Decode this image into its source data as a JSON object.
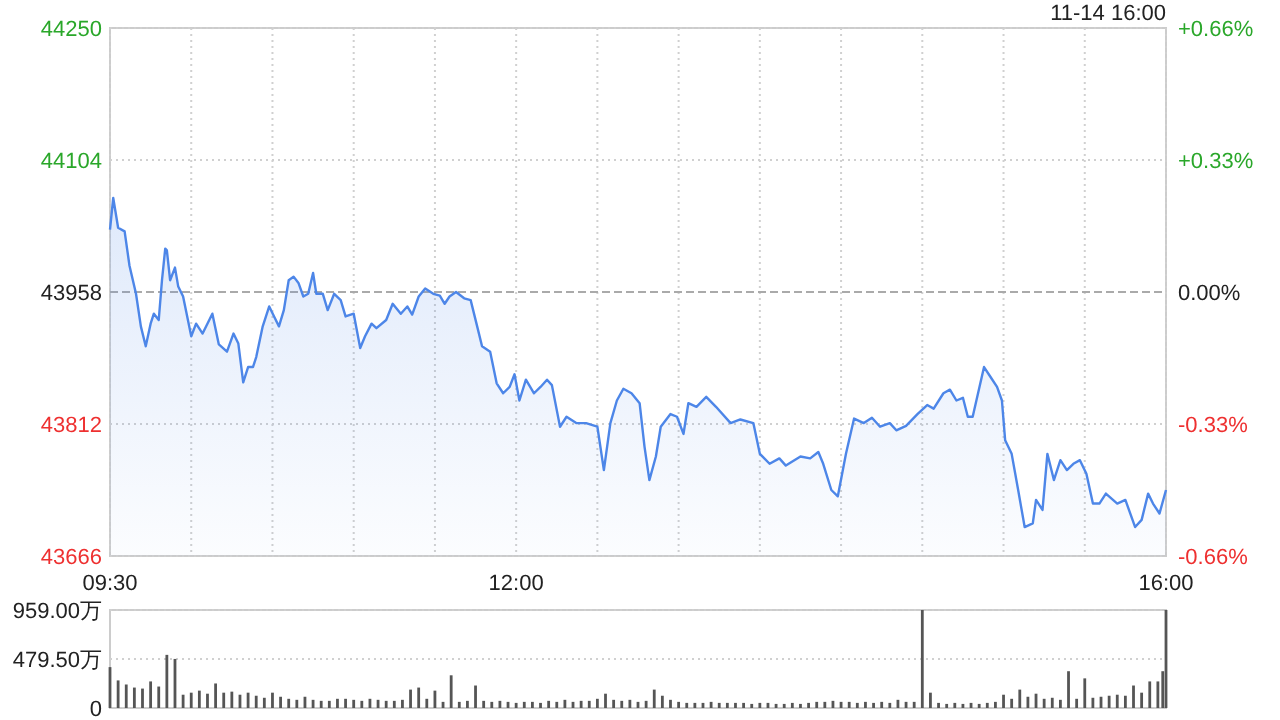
{
  "chart_data": [
    {
      "type": "area",
      "annotations": [
        "11-14 16:00"
      ],
      "xlim": [
        9.5,
        16
      ],
      "xticks": [
        {
          "value": 9.5,
          "label": "09:30"
        },
        {
          "value": 10,
          "label": null
        },
        {
          "value": 10.5,
          "label": null
        },
        {
          "value": 11,
          "label": null
        },
        {
          "value": 11.5,
          "label": null
        },
        {
          "value": 12,
          "label": "12:00"
        },
        {
          "value": 12.5,
          "label": null
        },
        {
          "value": 13,
          "label": null
        },
        {
          "value": 13.5,
          "label": null
        },
        {
          "value": 14,
          "label": null
        },
        {
          "value": 14.5,
          "label": null
        },
        {
          "value": 15,
          "label": null
        },
        {
          "value": 15.5,
          "label": null
        },
        {
          "value": 16,
          "label": "16:00"
        }
      ],
      "ylim": [
        43666,
        44250
      ],
      "yticks": [
        43666,
        43812,
        43958,
        44104,
        44250
      ],
      "y2lim": [
        -0.66,
        0.66
      ],
      "y2ticks": [
        {
          "value": -0.66,
          "label": "-0.66%"
        },
        {
          "value": -0.33,
          "label": "-0.33%"
        },
        {
          "value": 0,
          "label": "0.00%"
        },
        {
          "value": 0.33,
          "label": "+0.33%"
        },
        {
          "value": 0.66,
          "label": "+0.66%"
        }
      ],
      "grid": true,
      "ref_lines": [
        {
          "axis": "y",
          "value": 43958,
          "color": "#aaaaaa",
          "line_style": "dashed"
        }
      ],
      "series": [
        {
          "color": "#4d86e8",
          "x": [
            9.5,
            9.52,
            9.55,
            9.59,
            9.62,
            9.66,
            9.69,
            9.72,
            9.75,
            9.77,
            9.8,
            9.82,
            9.84,
            9.85,
            9.87,
            9.9,
            9.92,
            9.95,
            10.0,
            10.03,
            10.07,
            10.13,
            10.17,
            10.22,
            10.26,
            10.29,
            10.32,
            10.35,
            10.38,
            10.4,
            10.44,
            10.48,
            10.51,
            10.54,
            10.57,
            10.6,
            10.63,
            10.66,
            10.69,
            10.72,
            10.75,
            10.77,
            10.81,
            10.84,
            10.88,
            10.92,
            10.95,
            11.0,
            11.04,
            11.07,
            11.11,
            11.14,
            11.2,
            11.24,
            11.29,
            11.33,
            11.36,
            11.4,
            11.44,
            11.49,
            11.53,
            11.56,
            11.59,
            11.63,
            11.68,
            11.72,
            11.76,
            11.79,
            11.84,
            11.88,
            11.92,
            11.96,
            11.99,
            12.02,
            12.06,
            12.11,
            12.15,
            12.19,
            12.22,
            12.27,
            12.31,
            12.37,
            12.43,
            12.5,
            12.54,
            12.58,
            12.62,
            12.66,
            12.71,
            12.76,
            12.79,
            12.82,
            12.86,
            12.89,
            12.95,
            12.99,
            13.03,
            13.06,
            13.11,
            13.17,
            13.23,
            13.32,
            13.38,
            13.46,
            13.5,
            13.56,
            13.62,
            13.66,
            13.75,
            13.81,
            13.86,
            13.89,
            13.94,
            13.98,
            14.03,
            14.08,
            14.14,
            14.19,
            14.24,
            14.3,
            14.34,
            14.4,
            14.47,
            14.53,
            14.57,
            14.63,
            14.67,
            14.71,
            14.75,
            14.78,
            14.81,
            14.88,
            14.92,
            14.96,
            14.99,
            15.01,
            15.05,
            15.09,
            15.13,
            15.18,
            15.2,
            15.24,
            15.27,
            15.31,
            15.35,
            15.39,
            15.43,
            15.47,
            15.51,
            15.55,
            15.59,
            15.63,
            15.7,
            15.75,
            15.81,
            15.85,
            15.89,
            15.92,
            15.96,
            16.0
          ],
          "values": [
            44027,
            44062,
            44029,
            44025,
            43987,
            43956,
            43920,
            43898,
            43923,
            43934,
            43927,
            43971,
            44006,
            44004,
            43971,
            43985,
            43964,
            43953,
            43909,
            43923,
            43912,
            43934,
            43900,
            43892,
            43912,
            43901,
            43858,
            43875,
            43875,
            43886,
            43920,
            43942,
            43931,
            43920,
            43938,
            43971,
            43975,
            43968,
            43953,
            43956,
            43979,
            43956,
            43956,
            43938,
            43956,
            43949,
            43931,
            43934,
            43896,
            43909,
            43923,
            43918,
            43927,
            43945,
            43934,
            43942,
            43933,
            43953,
            43962,
            43956,
            43954,
            43945,
            43953,
            43958,
            43951,
            43949,
            43920,
            43898,
            43892,
            43857,
            43846,
            43853,
            43867,
            43838,
            43861,
            43846,
            43853,
            43861,
            43855,
            43809,
            43820,
            43813,
            43813,
            43809,
            43761,
            43813,
            43838,
            43851,
            43846,
            43835,
            43787,
            43750,
            43776,
            43809,
            43823,
            43820,
            43801,
            43835,
            43831,
            43842,
            43831,
            43813,
            43817,
            43813,
            43779,
            43768,
            43774,
            43766,
            43776,
            43774,
            43781,
            43768,
            43739,
            43732,
            43779,
            43818,
            43813,
            43819,
            43809,
            43813,
            43805,
            43810,
            43823,
            43833,
            43829,
            43846,
            43850,
            43838,
            43841,
            43820,
            43820,
            43875,
            43864,
            43853,
            43838,
            43794,
            43779,
            43739,
            43698,
            43702,
            43728,
            43717,
            43779,
            43750,
            43772,
            43761,
            43768,
            43772,
            43757,
            43724,
            43724,
            43735,
            43724,
            43728,
            43698,
            43706,
            43735,
            43724,
            43713,
            43739
          ]
        }
      ]
    },
    {
      "type": "bar",
      "tick_labels": "y",
      "grid": "y",
      "xlim": [
        9.5,
        16
      ],
      "ylim": [
        0,
        959
      ],
      "yticks": [
        0,
        {
          "value": 479.5,
          "label": "479.50万"
        },
        {
          "value": 959,
          "label": "959.00万"
        }
      ],
      "series": [
        {
          "color": "#555555",
          "x": [
            9.5,
            9.55,
            9.6,
            9.65,
            9.7,
            9.75,
            9.8,
            9.85,
            9.9,
            9.95,
            10.0,
            10.05,
            10.1,
            10.15,
            10.2,
            10.25,
            10.3,
            10.35,
            10.4,
            10.45,
            10.5,
            10.55,
            10.6,
            10.65,
            10.7,
            10.75,
            10.8,
            10.85,
            10.9,
            10.95,
            11.0,
            11.05,
            11.1,
            11.15,
            11.2,
            11.25,
            11.3,
            11.35,
            11.4,
            11.45,
            11.5,
            11.55,
            11.6,
            11.65,
            11.7,
            11.75,
            11.8,
            11.85,
            11.9,
            11.95,
            12.0,
            12.05,
            12.1,
            12.15,
            12.2,
            12.25,
            12.3,
            12.35,
            12.4,
            12.45,
            12.5,
            12.55,
            12.6,
            12.65,
            12.7,
            12.75,
            12.8,
            12.85,
            12.9,
            12.95,
            13.0,
            13.05,
            13.1,
            13.15,
            13.2,
            13.25,
            13.3,
            13.35,
            13.4,
            13.45,
            13.5,
            13.55,
            13.6,
            13.65,
            13.7,
            13.75,
            13.8,
            13.85,
            13.9,
            13.95,
            14.0,
            14.05,
            14.1,
            14.15,
            14.2,
            14.25,
            14.3,
            14.35,
            14.4,
            14.45,
            14.5,
            14.55,
            14.6,
            14.65,
            14.7,
            14.75,
            14.8,
            14.85,
            14.9,
            14.95,
            15.0,
            15.05,
            15.1,
            15.15,
            15.2,
            15.25,
            15.3,
            15.35,
            15.4,
            15.45,
            15.5,
            15.55,
            15.6,
            15.65,
            15.7,
            15.75,
            15.8,
            15.85,
            15.9,
            15.95,
            15.98,
            16.0
          ],
          "values": [
            400,
            270,
            230,
            200,
            190,
            260,
            210,
            520,
            480,
            130,
            150,
            170,
            140,
            240,
            150,
            160,
            130,
            150,
            120,
            100,
            150,
            110,
            90,
            80,
            110,
            80,
            70,
            70,
            90,
            90,
            80,
            70,
            90,
            80,
            70,
            70,
            80,
            180,
            200,
            90,
            170,
            60,
            320,
            60,
            70,
            220,
            70,
            60,
            70,
            60,
            50,
            60,
            60,
            50,
            70,
            60,
            80,
            60,
            70,
            70,
            90,
            140,
            80,
            70,
            80,
            60,
            70,
            180,
            120,
            80,
            60,
            50,
            50,
            50,
            60,
            50,
            50,
            50,
            50,
            40,
            50,
            50,
            40,
            40,
            50,
            40,
            50,
            60,
            60,
            70,
            60,
            60,
            50,
            60,
            50,
            60,
            50,
            80,
            60,
            60,
            959,
            150,
            50,
            40,
            50,
            40,
            50,
            40,
            50,
            60,
            130,
            90,
            180,
            110,
            140,
            90,
            100,
            80,
            360,
            90,
            290,
            100,
            110,
            120,
            130,
            120,
            220,
            150,
            260,
            260,
            360,
            959
          ]
        }
      ]
    }
  ]
}
